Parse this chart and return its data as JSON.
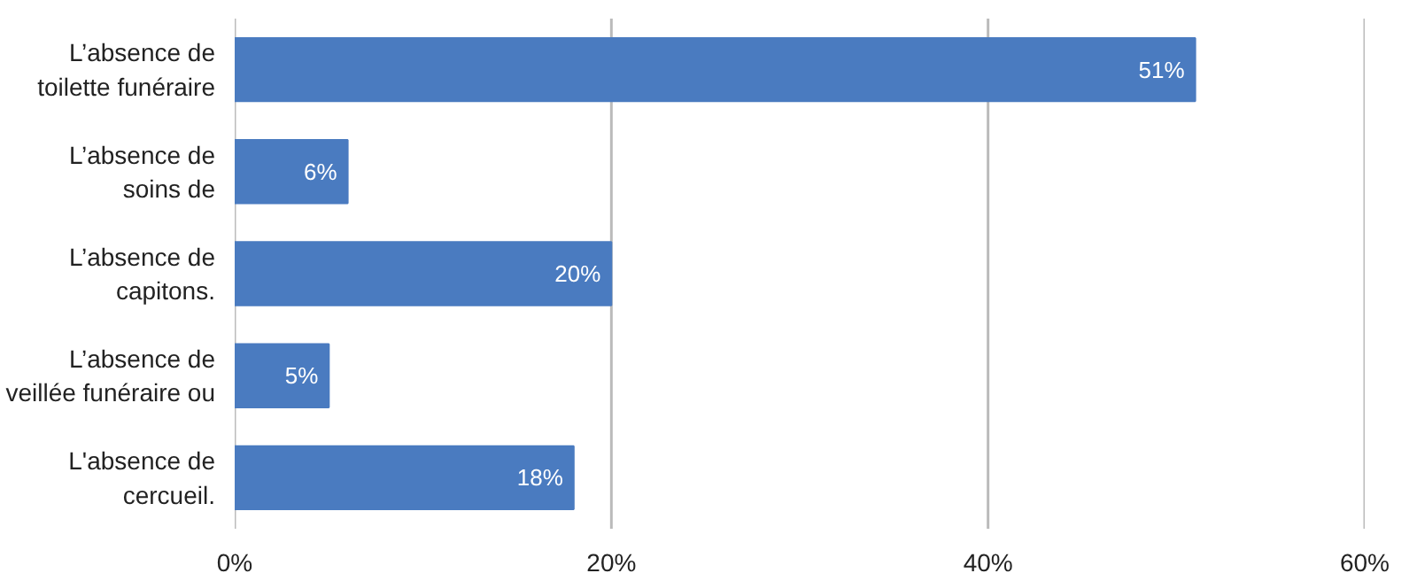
{
  "chart_data": {
    "type": "bar",
    "orientation": "horizontal",
    "categories": [
      "L’absence de\ntoilette funéraire",
      "L’absence de\nsoins de",
      "L’absence de\ncapitons.",
      "L’absence de\nveillée funéraire ou",
      "L'absence de\ncercueil."
    ],
    "values": [
      51,
      6,
      20,
      5,
      18
    ],
    "value_labels": [
      "51%",
      "6%",
      "20%",
      "5%",
      "18%"
    ],
    "color": "#4a7bc0",
    "xlim": [
      0,
      60
    ],
    "xticks": [
      {
        "value": 0,
        "label": "0%"
      },
      {
        "value": 20,
        "label": "20%"
      },
      {
        "value": 40,
        "label": "40%"
      },
      {
        "value": 60,
        "label": "60%"
      }
    ],
    "grid": "x"
  }
}
